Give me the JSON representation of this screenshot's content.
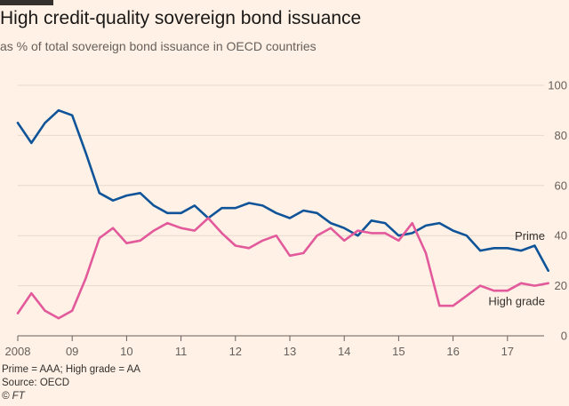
{
  "header": {
    "title": "High credit-quality sovereign bond issuance",
    "subtitle": "as % of total sovereign bond issuance in OECD countries"
  },
  "footer": {
    "note": "Prime = AAA; High grade = AA",
    "source": "Source: OECD",
    "credit": "© FT"
  },
  "chart_data": {
    "type": "line",
    "title": "High credit-quality sovereign bond issuance",
    "subtitle": "as % of total sovereign bond issuance in OECD countries",
    "xlabel": "",
    "ylabel": "",
    "x_range": [
      2008,
      2018
    ],
    "ylim": [
      0,
      100
    ],
    "y_ticks": [
      0,
      20,
      40,
      60,
      80,
      100
    ],
    "x_ticks": [
      {
        "value": 2008,
        "label": "2008"
      },
      {
        "value": 2009,
        "label": "09"
      },
      {
        "value": 2010,
        "label": "10"
      },
      {
        "value": 2011,
        "label": "11"
      },
      {
        "value": 2012,
        "label": "12"
      },
      {
        "value": 2013,
        "label": "13"
      },
      {
        "value": 2014,
        "label": "14"
      },
      {
        "value": 2015,
        "label": "15"
      },
      {
        "value": 2016,
        "label": "16"
      },
      {
        "value": 2017,
        "label": "17"
      }
    ],
    "grid": "horizontal",
    "y_axis_side": "right",
    "series": [
      {
        "name": "Prime",
        "color": "#0f5499",
        "points": [
          [
            2008.0,
            85
          ],
          [
            2008.25,
            77
          ],
          [
            2008.5,
            85
          ],
          [
            2008.75,
            90
          ],
          [
            2009.0,
            88
          ],
          [
            2009.25,
            73
          ],
          [
            2009.5,
            57
          ],
          [
            2009.75,
            54
          ],
          [
            2010.0,
            56
          ],
          [
            2010.25,
            57
          ],
          [
            2010.5,
            52
          ],
          [
            2010.75,
            49
          ],
          [
            2011.0,
            49
          ],
          [
            2011.25,
            52
          ],
          [
            2011.5,
            47
          ],
          [
            2011.75,
            51
          ],
          [
            2012.0,
            51
          ],
          [
            2012.25,
            53
          ],
          [
            2012.5,
            52
          ],
          [
            2012.75,
            49
          ],
          [
            2013.0,
            47
          ],
          [
            2013.25,
            50
          ],
          [
            2013.5,
            49
          ],
          [
            2013.75,
            45
          ],
          [
            2014.0,
            43
          ],
          [
            2014.25,
            40
          ],
          [
            2014.5,
            46
          ],
          [
            2014.75,
            45
          ],
          [
            2015.0,
            40
          ],
          [
            2015.25,
            41
          ],
          [
            2015.5,
            44
          ],
          [
            2015.75,
            45
          ],
          [
            2016.0,
            42
          ],
          [
            2016.25,
            40
          ],
          [
            2016.5,
            34
          ],
          [
            2016.75,
            35
          ],
          [
            2017.0,
            35
          ],
          [
            2017.25,
            34
          ],
          [
            2017.5,
            36
          ],
          [
            2017.75,
            26
          ]
        ]
      },
      {
        "name": "High grade",
        "color": "#e25a9b",
        "points": [
          [
            2008.0,
            9
          ],
          [
            2008.25,
            17
          ],
          [
            2008.5,
            10
          ],
          [
            2008.75,
            7
          ],
          [
            2009.0,
            10
          ],
          [
            2009.25,
            23
          ],
          [
            2009.5,
            39
          ],
          [
            2009.75,
            43
          ],
          [
            2010.0,
            37
          ],
          [
            2010.25,
            38
          ],
          [
            2010.5,
            42
          ],
          [
            2010.75,
            45
          ],
          [
            2011.0,
            43
          ],
          [
            2011.25,
            42
          ],
          [
            2011.5,
            47
          ],
          [
            2011.75,
            41
          ],
          [
            2012.0,
            36
          ],
          [
            2012.25,
            35
          ],
          [
            2012.5,
            38
          ],
          [
            2012.75,
            40
          ],
          [
            2013.0,
            32
          ],
          [
            2013.25,
            33
          ],
          [
            2013.5,
            40
          ],
          [
            2013.75,
            43
          ],
          [
            2014.0,
            38
          ],
          [
            2014.25,
            42
          ],
          [
            2014.5,
            41
          ],
          [
            2014.75,
            41
          ],
          [
            2015.0,
            38
          ],
          [
            2015.25,
            45
          ],
          [
            2015.5,
            33
          ],
          [
            2015.75,
            12
          ],
          [
            2016.0,
            12
          ],
          [
            2016.25,
            16
          ],
          [
            2016.5,
            20
          ],
          [
            2016.75,
            18
          ],
          [
            2017.0,
            18
          ],
          [
            2017.25,
            21
          ],
          [
            2017.5,
            20
          ],
          [
            2017.75,
            21
          ]
        ]
      }
    ]
  }
}
